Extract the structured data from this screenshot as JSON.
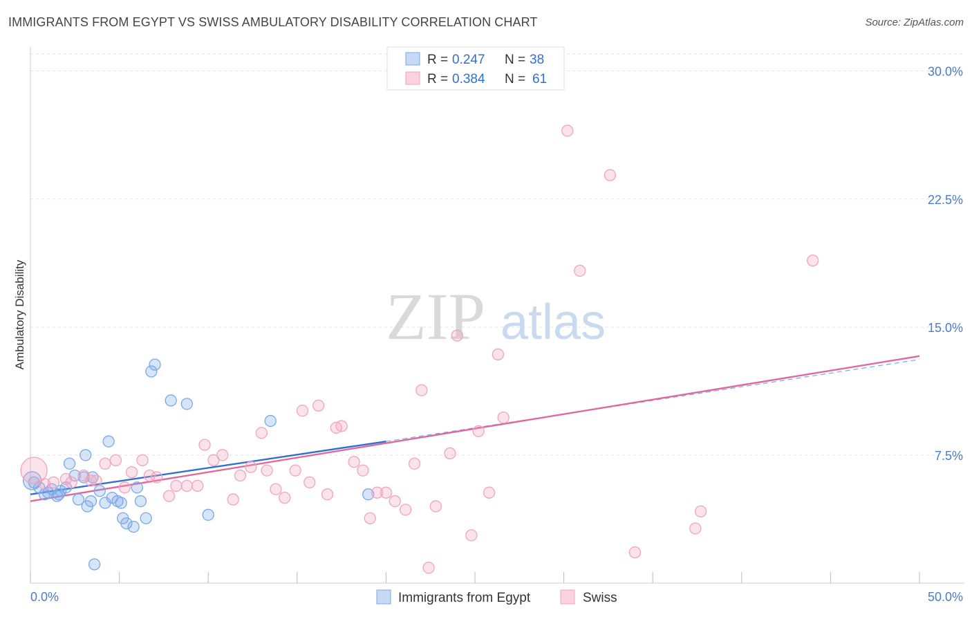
{
  "header": {
    "title": "IMMIGRANTS FROM EGYPT VS SWISS AMBULATORY DISABILITY CORRELATION CHART",
    "source": "Source: ZipAtlas.com"
  },
  "watermark": {
    "zip": "ZIP",
    "atlas": "atlas"
  },
  "colors": {
    "blue": "#7aa8e8",
    "blue_line": "#2f6fd1",
    "pink": "#f2a3bc",
    "pink_line": "#e0689a",
    "tick_text": "#4a7cc7"
  },
  "legend": {
    "items": [
      {
        "r_label": "R = ",
        "r_value": "0.247",
        "n_label": "N = ",
        "n_value": "38"
      },
      {
        "r_label": "R = ",
        "r_value": "0.384",
        "n_label": "N = ",
        "n_value": "61"
      }
    ]
  },
  "chart_data": {
    "type": "scatter",
    "title": "IMMIGRANTS FROM EGYPT VS SWISS AMBULATORY DISABILITY CORRELATION CHART",
    "xlabel": "",
    "ylabel": "Ambulatory Disability",
    "xlim": [
      0,
      50
    ],
    "ylim": [
      0,
      31
    ],
    "x_tick_labels": [
      "0.0%",
      "50.0%"
    ],
    "y_ticks": [
      7.5,
      15.0,
      22.5,
      30.0
    ],
    "y_tick_labels": [
      "7.5%",
      "15.0%",
      "22.5%",
      "30.0%"
    ],
    "grid": true,
    "legend_position": "top-center",
    "series": [
      {
        "name": "Immigrants from Egypt",
        "color": "#7aa8e8",
        "points": [
          [
            0.2,
            5.9
          ],
          [
            0.5,
            5.6
          ],
          [
            0.8,
            5.2
          ],
          [
            1.0,
            5.3
          ],
          [
            1.2,
            5.5
          ],
          [
            1.5,
            5.1
          ],
          [
            1.7,
            5.4
          ],
          [
            2.0,
            5.6
          ],
          [
            2.2,
            7.0
          ],
          [
            2.5,
            6.3
          ],
          [
            2.7,
            4.9
          ],
          [
            3.0,
            6.2
          ],
          [
            3.1,
            7.5
          ],
          [
            3.2,
            4.5
          ],
          [
            3.4,
            4.8
          ],
          [
            3.5,
            6.2
          ],
          [
            3.6,
            1.1
          ],
          [
            3.9,
            5.4
          ],
          [
            4.2,
            4.7
          ],
          [
            4.4,
            8.3
          ],
          [
            4.6,
            5.0
          ],
          [
            4.9,
            4.8
          ],
          [
            5.1,
            4.7
          ],
          [
            5.2,
            3.8
          ],
          [
            5.4,
            3.5
          ],
          [
            5.8,
            3.3
          ],
          [
            6.0,
            5.6
          ],
          [
            6.2,
            4.8
          ],
          [
            6.5,
            3.8
          ],
          [
            6.8,
            12.4
          ],
          [
            7.0,
            12.8
          ],
          [
            7.9,
            10.7
          ],
          [
            8.8,
            10.5
          ],
          [
            10.0,
            4.0
          ],
          [
            13.5,
            9.5
          ],
          [
            19.0,
            5.2
          ],
          [
            0.1,
            6.0
          ],
          [
            1.6,
            5.2
          ]
        ]
      },
      {
        "name": "Swiss",
        "color": "#f2a3bc",
        "points": [
          [
            0.2,
            6.6
          ],
          [
            0.8,
            5.8
          ],
          [
            1.3,
            5.9
          ],
          [
            2.0,
            6.1
          ],
          [
            2.3,
            5.9
          ],
          [
            3.0,
            6.3
          ],
          [
            3.4,
            6.0
          ],
          [
            3.7,
            6.0
          ],
          [
            4.2,
            7.0
          ],
          [
            4.8,
            7.2
          ],
          [
            5.3,
            5.6
          ],
          [
            5.7,
            6.5
          ],
          [
            6.3,
            7.2
          ],
          [
            6.7,
            6.3
          ],
          [
            7.1,
            6.2
          ],
          [
            7.8,
            5.1
          ],
          [
            8.2,
            5.7
          ],
          [
            8.8,
            5.7
          ],
          [
            9.4,
            5.7
          ],
          [
            9.8,
            8.1
          ],
          [
            10.3,
            7.2
          ],
          [
            10.8,
            7.5
          ],
          [
            11.4,
            4.9
          ],
          [
            11.8,
            6.3
          ],
          [
            12.4,
            6.8
          ],
          [
            13.0,
            8.8
          ],
          [
            13.3,
            6.6
          ],
          [
            13.8,
            5.5
          ],
          [
            14.3,
            5.0
          ],
          [
            14.9,
            6.6
          ],
          [
            15.3,
            10.1
          ],
          [
            15.7,
            5.9
          ],
          [
            16.2,
            10.4
          ],
          [
            16.7,
            5.2
          ],
          [
            17.2,
            9.1
          ],
          [
            17.5,
            9.2
          ],
          [
            18.2,
            7.1
          ],
          [
            18.7,
            6.6
          ],
          [
            19.1,
            3.8
          ],
          [
            19.5,
            5.3
          ],
          [
            20.0,
            5.3
          ],
          [
            20.5,
            4.8
          ],
          [
            21.1,
            4.3
          ],
          [
            21.6,
            7.0
          ],
          [
            22.0,
            11.3
          ],
          [
            22.4,
            0.9
          ],
          [
            22.8,
            4.5
          ],
          [
            23.6,
            7.6
          ],
          [
            24.0,
            14.5
          ],
          [
            24.8,
            2.8
          ],
          [
            25.2,
            8.9
          ],
          [
            25.8,
            5.3
          ],
          [
            26.3,
            13.4
          ],
          [
            26.6,
            9.7
          ],
          [
            30.2,
            26.5
          ],
          [
            30.9,
            18.3
          ],
          [
            32.6,
            23.9
          ],
          [
            34.0,
            1.8
          ],
          [
            37.4,
            3.2
          ],
          [
            37.7,
            4.2
          ],
          [
            44.0,
            18.9
          ]
        ]
      }
    ],
    "trendlines": [
      {
        "series": "Immigrants from Egypt",
        "solid_from": [
          0,
          5.2
        ],
        "solid_to": [
          20,
          8.3
        ],
        "dashed_to": [
          50,
          13.1
        ]
      },
      {
        "series": "Swiss",
        "from": [
          0,
          4.8
        ],
        "to": [
          50,
          13.3
        ]
      }
    ]
  }
}
